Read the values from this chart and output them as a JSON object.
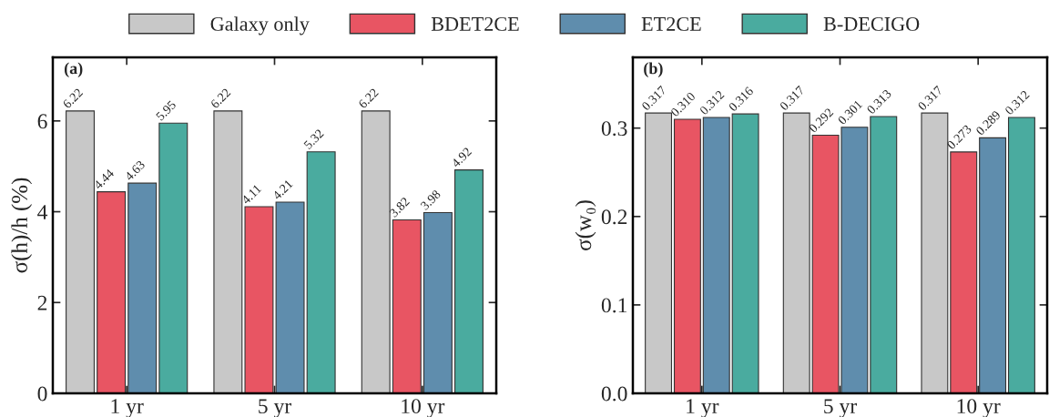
{
  "chart_data": [
    {
      "type": "bar",
      "ylabel": "σ(h)/h (%)",
      "annotations": [
        "(a)"
      ],
      "categories": [
        "1 yr",
        "5 yr",
        "10 yr"
      ],
      "ylim": [
        0,
        7.4
      ],
      "yticks": [
        0,
        2,
        4,
        6
      ],
      "legend": "top",
      "grid": false,
      "series": [
        {
          "name": "Galaxy only",
          "color": "#c8c8c8",
          "values": [
            6.22,
            6.22,
            6.22
          ],
          "value_labels": [
            "6.22",
            "6.22",
            "6.22"
          ]
        },
        {
          "name": "BDET2CE",
          "color": "#e85563",
          "values": [
            4.44,
            4.11,
            3.82
          ],
          "value_labels": [
            "4.44",
            "4.11",
            "3.82"
          ]
        },
        {
          "name": "ET2CE",
          "color": "#5f8dad",
          "values": [
            4.63,
            4.21,
            3.98
          ],
          "value_labels": [
            "4.63",
            "4.21",
            "3.98"
          ]
        },
        {
          "name": "B-DECIGO",
          "color": "#4aab9f",
          "values": [
            5.95,
            5.32,
            4.92
          ],
          "value_labels": [
            "5.95",
            "5.32",
            "4.92"
          ]
        }
      ]
    },
    {
      "type": "bar",
      "ylabel": "σ(w₀)",
      "annotations": [
        "(b)"
      ],
      "categories": [
        "1 yr",
        "5 yr",
        "10 yr"
      ],
      "ylim": [
        0,
        0.38
      ],
      "yticks": [
        "0.0",
        "0.1",
        "0.2",
        "0.3"
      ],
      "grid": false,
      "series": [
        {
          "color": "#c8c8c8",
          "values": [
            0.317,
            0.317,
            0.317
          ],
          "value_labels": [
            "0.317",
            "0.317",
            "0.317"
          ]
        },
        {
          "color": "#e85563",
          "values": [
            0.31,
            0.292,
            0.273
          ],
          "value_labels": [
            "0.310",
            "0.292",
            "0.273"
          ]
        },
        {
          "color": "#5f8dad",
          "values": [
            0.312,
            0.301,
            0.289
          ],
          "value_labels": [
            "0.312",
            "0.301",
            "0.289"
          ]
        },
        {
          "color": "#4aab9f",
          "values": [
            0.316,
            0.313,
            0.312
          ],
          "value_labels": [
            "0.316",
            "0.313",
            "0.312"
          ]
        }
      ]
    }
  ]
}
